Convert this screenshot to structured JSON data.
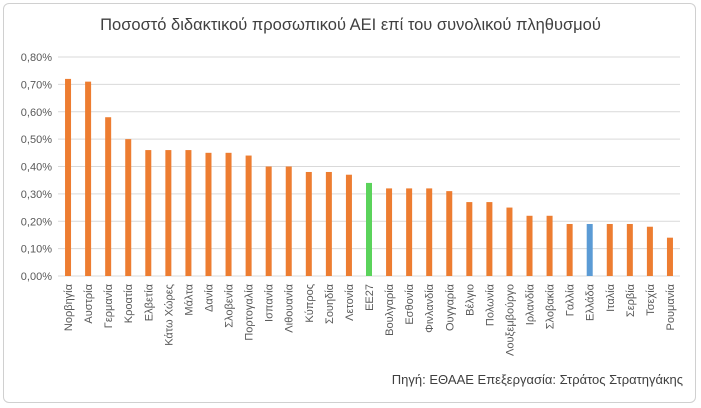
{
  "chart_data": {
    "type": "bar",
    "title": "Ποσοστό διδακτικού προσωπικού ΑΕΙ επί του συνολικού πληθυσμού",
    "source": "Πηγή: ΕΘΑΑΕ Επεξεργασία: Στράτος Στρατηγάκης",
    "ylim": [
      0,
      0.8
    ],
    "yticks": [
      "0,00%",
      "0,10%",
      "0,20%",
      "0,30%",
      "0,40%",
      "0,50%",
      "0,60%",
      "0,70%",
      "0,80%"
    ],
    "grid": true,
    "categories": [
      "Νορβηγία",
      "Αυστρία",
      "Γερμανία",
      "Κροατία",
      "Ελβετία",
      "Κάτω Χώρες",
      "Μάλτα",
      "Δανία",
      "Σλοβενία",
      "Πορτογαλία",
      "Ισπανία",
      "Λιθουανία",
      "Κύπρος",
      "Σουηδία",
      "Λετονία",
      "ΕΕ27",
      "Βουλγαρία",
      "Εσθονία",
      "Φινλανδία",
      "Ουγγαρία",
      "Βέλγιο",
      "Πολωνία",
      "Λουξεμβούργο",
      "Ιρλανδία",
      "Σλοβακία",
      "Γαλλία",
      "Ελλάδα",
      "Ιταλία",
      "Σερβία",
      "Τσεχία",
      "Ρουμανία"
    ],
    "values": [
      0.72,
      0.71,
      0.58,
      0.5,
      0.46,
      0.46,
      0.46,
      0.45,
      0.45,
      0.44,
      0.4,
      0.4,
      0.38,
      0.38,
      0.37,
      0.34,
      0.32,
      0.32,
      0.32,
      0.31,
      0.27,
      0.27,
      0.25,
      0.22,
      0.22,
      0.19,
      0.19,
      0.19,
      0.19,
      0.18,
      0.14
    ],
    "colors": {
      "default": "#ED7D31",
      "ΕΕ27": "#5BD35B",
      "Ελλάδα": "#5B9BD5"
    }
  }
}
